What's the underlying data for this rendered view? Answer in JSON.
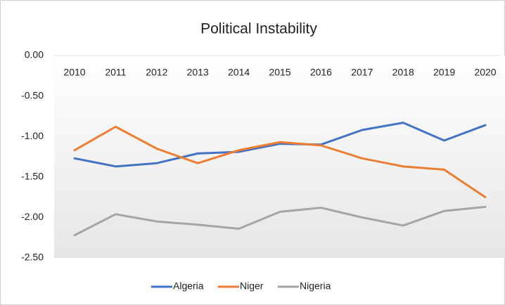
{
  "chart_data": {
    "type": "line",
    "title": "Political Instability",
    "categories": [
      "2010",
      "2011",
      "2012",
      "2013",
      "2014",
      "2015",
      "2016",
      "2017",
      "2018",
      "2019",
      "2020"
    ],
    "series": [
      {
        "name": "Algeria",
        "color": "#4472c4",
        "values": [
          -1.27,
          -1.37,
          -1.33,
          -1.21,
          -1.19,
          -1.09,
          -1.1,
          -0.92,
          -0.83,
          -1.05,
          -0.86
        ]
      },
      {
        "name": "Niger",
        "color": "#ed7d31",
        "values": [
          -1.17,
          -0.88,
          -1.15,
          -1.33,
          -1.17,
          -1.07,
          -1.11,
          -1.27,
          -1.37,
          -1.41,
          -1.75
        ]
      },
      {
        "name": "Nigeria",
        "color": "#a5a5a5",
        "values": [
          -2.22,
          -1.96,
          -2.05,
          -2.09,
          -2.14,
          -1.93,
          -1.88,
          -2.0,
          -2.1,
          -1.92,
          -1.87
        ]
      }
    ],
    "ylim": [
      -2.5,
      0
    ],
    "yticks": [
      {
        "value": 0,
        "label": "0.00"
      },
      {
        "value": -0.5,
        "label": "-0.50"
      },
      {
        "value": -1,
        "label": "-1.00"
      },
      {
        "value": -1.5,
        "label": "-1.50"
      },
      {
        "value": -2,
        "label": "-2.00"
      },
      {
        "value": -2.5,
        "label": "-2.50"
      }
    ],
    "legend": "bottom"
  }
}
